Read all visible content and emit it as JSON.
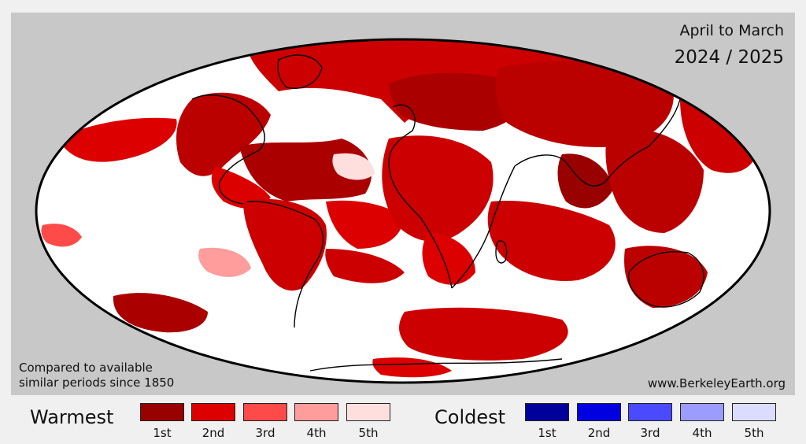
{
  "title": {
    "period": "April to March",
    "years": "2024 / 2025"
  },
  "note": {
    "line1": "Compared to available",
    "line2": "similar periods since 1850"
  },
  "source": "www.BerkeleyEarth.org",
  "legend": {
    "warm": {
      "title": "Warmest",
      "items": [
        {
          "label": "1st",
          "color": "#990000"
        },
        {
          "label": "2nd",
          "color": "#dd0000"
        },
        {
          "label": "3rd",
          "color": "#ff4a4a"
        },
        {
          "label": "4th",
          "color": "#ff9c9c"
        },
        {
          "label": "5th",
          "color": "#ffdede"
        }
      ]
    },
    "cold": {
      "title": "Coldest",
      "items": [
        {
          "label": "1st",
          "color": "#00009a"
        },
        {
          "label": "2nd",
          "color": "#0000e0"
        },
        {
          "label": "3rd",
          "color": "#4a4aff"
        },
        {
          "label": "4th",
          "color": "#9c9cff"
        },
        {
          "label": "5th",
          "color": "#dcdcff"
        }
      ]
    }
  },
  "map": {
    "projection": "Mollweide",
    "background_color": "#c8c8c8",
    "ocean_color": "#ffffff"
  }
}
